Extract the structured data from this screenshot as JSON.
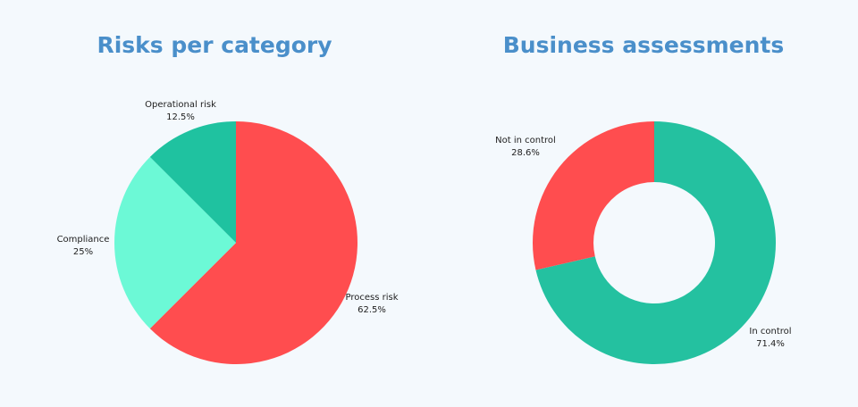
{
  "chart_data": [
    {
      "type": "pie",
      "title": "Risks per category",
      "slices": [
        {
          "label": "Process risk",
          "value": 62.5,
          "display": "62.5%",
          "color": "#ff4d4f"
        },
        {
          "label": "Compliance",
          "value": 25,
          "display": "25%",
          "color": "#6cf9d6"
        },
        {
          "label": "Operational risk",
          "value": 12.5,
          "display": "12.5%",
          "color": "#1fc2a0"
        }
      ]
    },
    {
      "type": "pie",
      "variant": "donut",
      "title": "Business assessments",
      "slices": [
        {
          "label": "In control",
          "value": 71.4,
          "display": "71.4%",
          "color": "#24c1a0"
        },
        {
          "label": "Not in control",
          "value": 28.6,
          "display": "28.6%",
          "color": "#ff4d4f"
        }
      ]
    }
  ],
  "colors": {
    "background": "#f4f9fd",
    "title": "#4a8fca",
    "label_text": "#1e1e1e"
  }
}
